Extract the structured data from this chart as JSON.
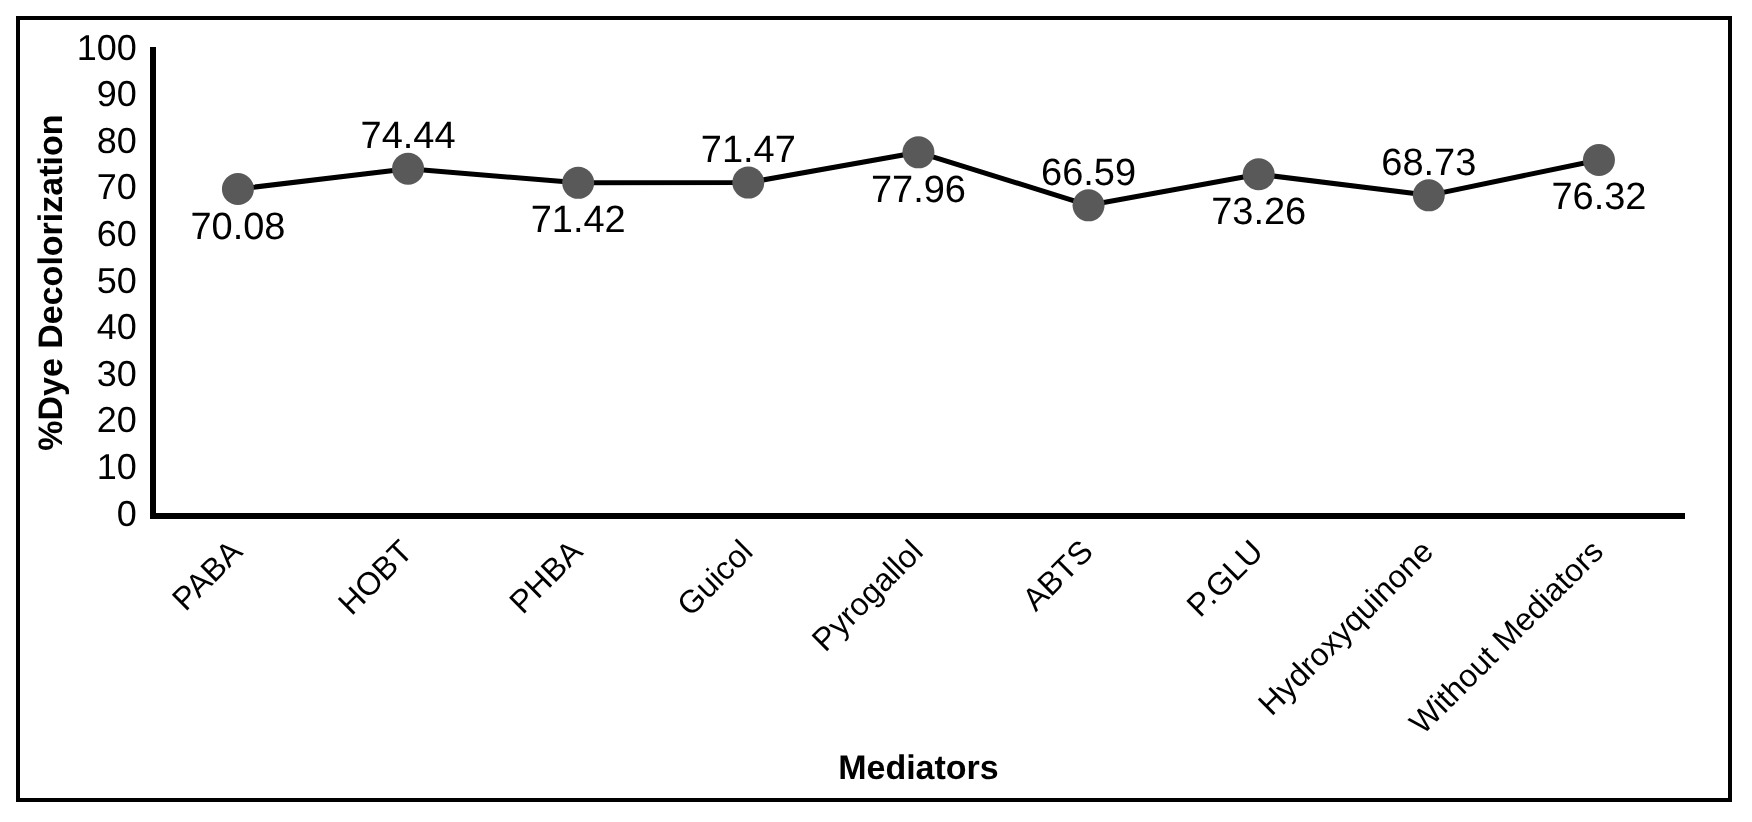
{
  "chart_data": {
    "type": "line",
    "xlabel": "Mediators",
    "ylabel": "%Dye Decolorization",
    "categories": [
      "PABA",
      "HOBT",
      "PHBA",
      "Guicol",
      "Pyrogallol",
      "ABTS",
      "P.GLU",
      "Hydroxyquinone",
      "Without Mediators"
    ],
    "series": [
      {
        "color": "#000000",
        "values": [
          70.08,
          74.44,
          71.42,
          71.47,
          77.96,
          66.59,
          73.26,
          68.73,
          76.32
        ]
      }
    ],
    "ylim": [
      0,
      100
    ],
    "yticks": [
      0,
      10,
      20,
      30,
      40,
      50,
      60,
      70,
      80,
      90,
      100
    ],
    "grid": false,
    "legend": false,
    "marker": "circle",
    "line_style": "solid",
    "data_labels": true
  }
}
